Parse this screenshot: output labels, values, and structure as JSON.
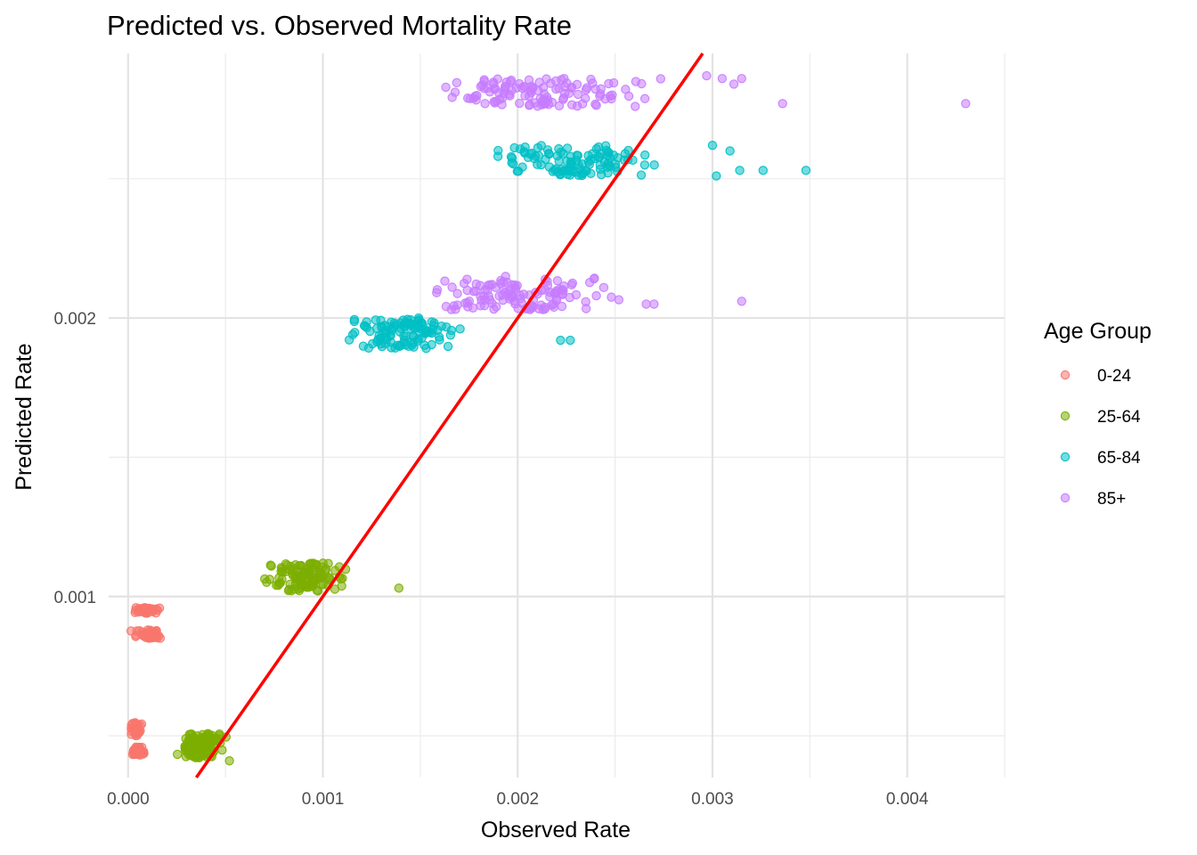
{
  "chart_data": {
    "type": "scatter",
    "title": "Predicted vs. Observed Mortality Rate",
    "xlabel": "Observed Rate",
    "ylabel": "Predicted Rate",
    "xlim": [
      -0.0001,
      0.0045
    ],
    "ylim": [
      0.00035,
      0.00295
    ],
    "x_ticks": [
      0.0,
      0.001,
      0.002,
      0.003,
      0.004
    ],
    "x_tick_labels": [
      "0.000",
      "0.001",
      "0.002",
      "0.003",
      "0.004"
    ],
    "y_ticks": [
      0.001,
      0.002
    ],
    "y_tick_labels": [
      "0.001",
      "0.002"
    ],
    "grid": true,
    "legend": {
      "title": "Age Group",
      "position": "right",
      "entries": [
        {
          "label": "0-24",
          "color": "#F8766D"
        },
        {
          "label": "25-64",
          "color": "#7CAE00"
        },
        {
          "label": "65-84",
          "color": "#00BFC4"
        },
        {
          "label": "85+",
          "color": "#C77CFF"
        }
      ]
    },
    "reference_line": {
      "type": "identity",
      "slope": 1,
      "intercept": 0,
      "color": "#FF0000"
    },
    "series": [
      {
        "name": "0-24",
        "color": "#F8766D",
        "clusters": [
          {
            "x_range": [
              0.0,
              0.00018
            ],
            "y_range": [
              0.00094,
              0.00096
            ],
            "count": 45
          },
          {
            "x_range": [
              0.0,
              0.00022
            ],
            "y_range": [
              0.00085,
              0.00088
            ],
            "count": 45
          },
          {
            "x_range": [
              0.0,
              8e-05
            ],
            "y_range": [
              0.0005,
              0.00055
            ],
            "count": 40
          },
          {
            "x_range": [
              0.0,
              0.0001
            ],
            "y_range": [
              0.00043,
              0.00046
            ],
            "count": 40
          }
        ]
      },
      {
        "name": "25-64",
        "color": "#7CAE00",
        "clusters": [
          {
            "x_range": [
              0.00062,
              0.0012
            ],
            "y_range": [
              0.00102,
              0.00112
            ],
            "count": 110
          },
          {
            "x_range": [
              0.00022,
              0.00052
            ],
            "y_range": [
              0.00042,
              0.00051
            ],
            "count": 120
          }
        ],
        "outliers": [
          {
            "x": 0.00139,
            "y": 0.00103
          },
          {
            "x": 0.00052,
            "y": 0.00041
          }
        ]
      },
      {
        "name": "65-84",
        "color": "#00BFC4",
        "clusters": [
          {
            "x_range": [
              0.00175,
              0.00282
            ],
            "y_range": [
              0.00251,
              0.00262
            ],
            "count": 110
          },
          {
            "x_range": [
              0.00105,
              0.0018
            ],
            "y_range": [
              0.00189,
              0.002
            ],
            "count": 110
          }
        ],
        "outliers": [
          {
            "x": 0.003,
            "y": 0.00262
          },
          {
            "x": 0.00309,
            "y": 0.0026
          },
          {
            "x": 0.00302,
            "y": 0.00251
          },
          {
            "x": 0.00314,
            "y": 0.00253
          },
          {
            "x": 0.00326,
            "y": 0.00253
          },
          {
            "x": 0.00348,
            "y": 0.00253
          },
          {
            "x": 0.00222,
            "y": 0.00192
          },
          {
            "x": 0.00227,
            "y": 0.00192
          }
        ]
      },
      {
        "name": "85+",
        "color": "#C77CFF",
        "clusters": [
          {
            "x_range": [
              0.00138,
              0.00292
            ],
            "y_range": [
              0.00276,
              0.00286
            ],
            "count": 120
          },
          {
            "x_range": [
              0.0014,
              0.00262
            ],
            "y_range": [
              0.00203,
              0.00215
            ],
            "count": 120
          }
        ],
        "outliers": [
          {
            "x": 0.00297,
            "y": 0.00287
          },
          {
            "x": 0.00305,
            "y": 0.00286
          },
          {
            "x": 0.00311,
            "y": 0.00284
          },
          {
            "x": 0.00315,
            "y": 0.00286
          },
          {
            "x": 0.00336,
            "y": 0.00277
          },
          {
            "x": 0.0043,
            "y": 0.00277
          },
          {
            "x": 0.00315,
            "y": 0.00206
          },
          {
            "x": 0.0027,
            "y": 0.00205
          },
          {
            "x": 0.00266,
            "y": 0.00205
          }
        ]
      }
    ]
  }
}
